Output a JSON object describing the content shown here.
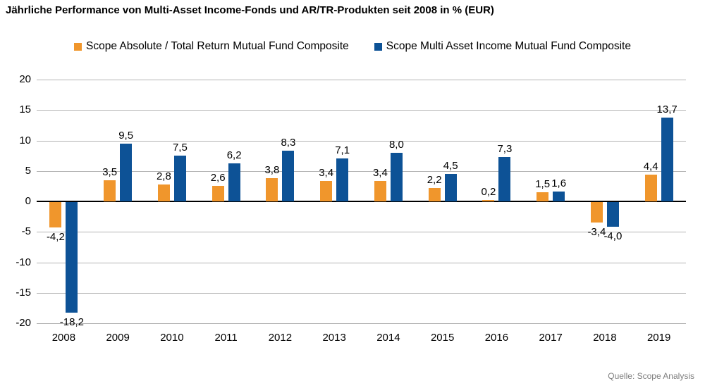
{
  "chart_data": {
    "type": "bar",
    "title": "Jährliche Performance von Multi-Asset Income-Fonds und AR/TR-Produkten seit 2008 in % (EUR)",
    "categories": [
      "2008",
      "2009",
      "2010",
      "2011",
      "2012",
      "2013",
      "2014",
      "2015",
      "2016",
      "2017",
      "2018",
      "2019"
    ],
    "series": [
      {
        "name": "Scope Absolute / Total Return Mutual Fund Composite",
        "short": "artr",
        "color": "#F0962C",
        "values": [
          -4.2,
          3.5,
          2.8,
          2.6,
          3.8,
          3.4,
          3.4,
          2.2,
          0.2,
          1.5,
          -3.4,
          4.4
        ],
        "labels": [
          "-4,2",
          "3,5",
          "2,8",
          "2,6",
          "3,8",
          "3,4",
          "3,4",
          "2,2",
          "0,2",
          "1,5",
          "-3,4",
          "4,4"
        ]
      },
      {
        "name": "Scope Multi Asset Income Mutual Fund Composite",
        "short": "mai",
        "color": "#0D5296",
        "values": [
          -18.2,
          9.5,
          7.5,
          6.2,
          8.3,
          7.1,
          8.0,
          4.5,
          7.3,
          1.6,
          -4.0,
          13.7
        ],
        "labels": [
          "-18,2",
          "9,5",
          "7,5",
          "6,2",
          "8,3",
          "7,1",
          "8,0",
          "4,5",
          "7,3",
          "1,6",
          "-4,0",
          "13,7"
        ]
      }
    ],
    "y_axis": {
      "min": -20,
      "max": 20,
      "step": 5,
      "tick_labels": [
        "20",
        "15",
        "10",
        "5",
        "0",
        "-5",
        "-10",
        "-15",
        "-20"
      ]
    },
    "legend_position": "top",
    "grid": true,
    "grid_color": "#B3B3B3",
    "zero_line_color": "#000000",
    "label_color": "#000000"
  },
  "source": {
    "label": "Quelle: Scope Analysis"
  }
}
